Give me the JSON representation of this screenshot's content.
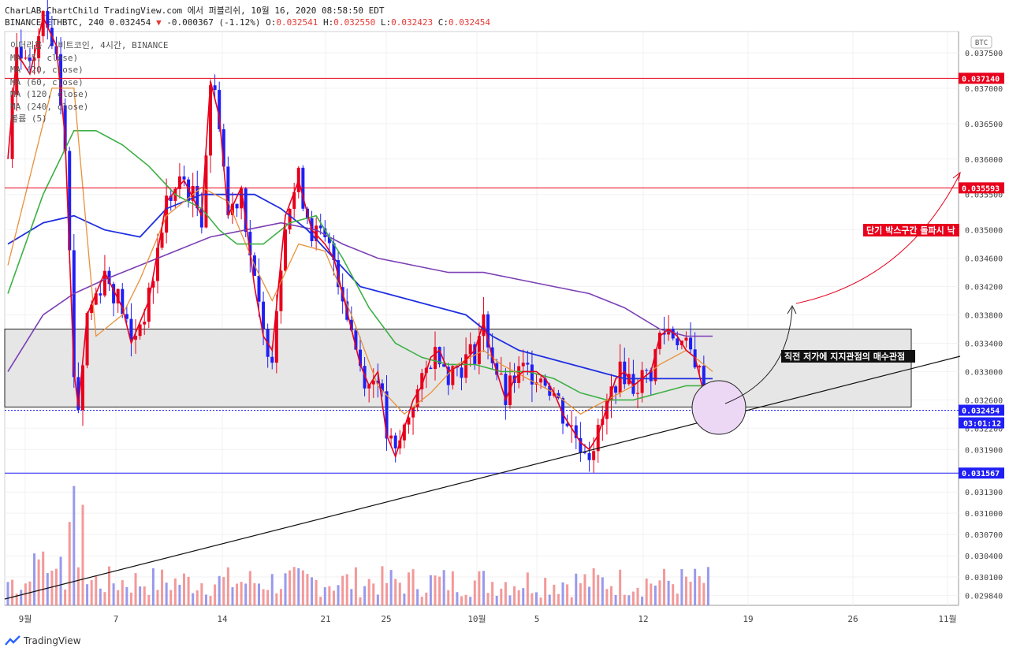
{
  "header": {
    "line1": "CharLAB_ChartChild TradingView.com 에서 퍼블리쉬, 10월 16, 2020 08:58:50 EDT",
    "symbol": "BINANCE:ETHBTC, 240 0.032454",
    "change": "-0.000367 (-1.12%)",
    "o_label": "O:",
    "o_val": "0.032541",
    "h_label": "H:",
    "h_val": "0.032550",
    "l_label": "L:",
    "l_val": "0.032423",
    "c_label": "C:",
    "c_val": "0.032454"
  },
  "legend": {
    "title": "이더리움 / 비트코인, 4시간, BINANCE",
    "items": [
      "MA (5, close)",
      "MA (20, close)",
      "MA (60, close)",
      "MA (120, close)",
      "MA (240, close)",
      "볼륨 (5)"
    ]
  },
  "currency_badge": "BTC",
  "footer": {
    "brand": "TradingView"
  },
  "annotations": {
    "breakout": "단기 박스구간 돌파시 낙",
    "support": "직전 저가에 지지관점의 매수관점",
    "timer": "03:01:12"
  },
  "colors": {
    "up": "#e8001c",
    "down": "#1f1ff5",
    "ma5": "#e8001c",
    "ma20": "#e8913a",
    "ma60": "#3cb043",
    "ma120": "#1f2fe0",
    "ma240": "#7b3fb5",
    "box_fill": "#e6e6e6",
    "ellipse_fill": "#ecd8f5"
  },
  "chart_data": {
    "type": "candlestick",
    "y_axis": {
      "min": 0.0297,
      "max": 0.0378,
      "ticks": [
        "0.037500",
        "0.037000",
        "0.036500",
        "0.036000",
        "0.035500",
        "0.035000",
        "0.034600",
        "0.034200",
        "0.033800",
        "0.033400",
        "0.033000",
        "0.032600",
        "0.032200",
        "0.031900",
        "0.031300",
        "0.031000",
        "0.030700",
        "0.030400",
        "0.030100",
        "0.029840"
      ]
    },
    "x_axis": {
      "labels": [
        "9월",
        "7",
        "14",
        "21",
        "25",
        "10월",
        "5",
        "12",
        "19",
        "26",
        "11월"
      ]
    },
    "price_levels": [
      {
        "value": 0.03714,
        "label": "0.037140",
        "color": "#e8001c"
      },
      {
        "value": 0.035593,
        "label": "0.035593",
        "color": "#e8001c"
      },
      {
        "value": 0.032454,
        "label": "0.032454",
        "color": "#1f1ff5"
      },
      {
        "value": 0.031567,
        "label": "0.031567",
        "color": "#1f1ff5"
      }
    ],
    "box_range": [
      0.0325,
      0.0336
    ],
    "price_path": [
      [
        0,
        0.036
      ],
      [
        2,
        0.0375
      ],
      [
        5,
        0.0372
      ],
      [
        8,
        0.038
      ],
      [
        11,
        0.0376
      ],
      [
        13,
        0.0363
      ],
      [
        15,
        0.033
      ],
      [
        16,
        0.0325
      ],
      [
        18,
        0.0338
      ],
      [
        22,
        0.0344
      ],
      [
        26,
        0.0339
      ],
      [
        28,
        0.0334
      ],
      [
        32,
        0.034
      ],
      [
        36,
        0.0354
      ],
      [
        40,
        0.0357
      ],
      [
        44,
        0.0352
      ],
      [
        46,
        0.0371
      ],
      [
        48,
        0.0366
      ],
      [
        50,
        0.0352
      ],
      [
        53,
        0.0356
      ],
      [
        56,
        0.0342
      ],
      [
        58,
        0.0335
      ],
      [
        60,
        0.0333
      ],
      [
        63,
        0.0352
      ],
      [
        66,
        0.0357
      ],
      [
        69,
        0.035
      ],
      [
        72,
        0.0348
      ],
      [
        74,
        0.0346
      ],
      [
        76,
        0.0341
      ],
      [
        78,
        0.0336
      ],
      [
        80,
        0.0331
      ],
      [
        82,
        0.0328
      ],
      [
        84,
        0.033
      ],
      [
        86,
        0.0321
      ],
      [
        88,
        0.0318
      ],
      [
        90,
        0.0322
      ],
      [
        92,
        0.0326
      ],
      [
        94,
        0.0328
      ],
      [
        96,
        0.0332
      ],
      [
        98,
        0.0333
      ],
      [
        100,
        0.033
      ],
      [
        103,
        0.0331
      ],
      [
        106,
        0.0333
      ],
      [
        108,
        0.0337
      ],
      [
        110,
        0.0332
      ],
      [
        113,
        0.0326
      ],
      [
        115,
        0.0329
      ],
      [
        117,
        0.033
      ],
      [
        120,
        0.033
      ],
      [
        122,
        0.0329
      ],
      [
        124,
        0.0327
      ],
      [
        126,
        0.0324
      ],
      [
        128,
        0.0322
      ],
      [
        130,
        0.032
      ],
      [
        132,
        0.0319
      ],
      [
        134,
        0.0321
      ],
      [
        136,
        0.0325
      ],
      [
        138,
        0.0329
      ],
      [
        140,
        0.033
      ],
      [
        142,
        0.0328
      ],
      [
        144,
        0.0329
      ],
      [
        146,
        0.033
      ],
      [
        148,
        0.0335
      ],
      [
        150,
        0.0336
      ],
      [
        152,
        0.0335
      ],
      [
        154,
        0.0333
      ],
      [
        156,
        0.0332
      ],
      [
        158,
        0.0327
      ],
      [
        159,
        0.03245
      ]
    ],
    "volume_axis_max": 0.004,
    "ma_lines": {
      "ma20": [
        [
          0,
          0.0345
        ],
        [
          10,
          0.037
        ],
        [
          15,
          0.037
        ],
        [
          20,
          0.0335
        ],
        [
          26,
          0.0338
        ],
        [
          30,
          0.0343
        ],
        [
          36,
          0.0352
        ],
        [
          44,
          0.0356
        ],
        [
          50,
          0.0354
        ],
        [
          56,
          0.0345
        ],
        [
          60,
          0.034
        ],
        [
          66,
          0.0348
        ],
        [
          72,
          0.0347
        ],
        [
          78,
          0.0338
        ],
        [
          84,
          0.0328
        ],
        [
          90,
          0.0324
        ],
        [
          96,
          0.0327
        ],
        [
          102,
          0.0331
        ],
        [
          108,
          0.0333
        ],
        [
          112,
          0.0331
        ],
        [
          118,
          0.0329
        ],
        [
          124,
          0.0327
        ],
        [
          130,
          0.0324
        ],
        [
          136,
          0.0326
        ],
        [
          142,
          0.0328
        ],
        [
          148,
          0.0331
        ],
        [
          154,
          0.0333
        ],
        [
          160,
          0.033
        ]
      ],
      "ma60": [
        [
          0,
          0.0341
        ],
        [
          8,
          0.0355
        ],
        [
          15,
          0.0364
        ],
        [
          20,
          0.0364
        ],
        [
          26,
          0.0362
        ],
        [
          32,
          0.0359
        ],
        [
          38,
          0.0355
        ],
        [
          44,
          0.0353
        ],
        [
          48,
          0.035
        ],
        [
          52,
          0.0348
        ],
        [
          58,
          0.0348
        ],
        [
          64,
          0.0351
        ],
        [
          70,
          0.0352
        ],
        [
          76,
          0.0346
        ],
        [
          82,
          0.0339
        ],
        [
          88,
          0.0334
        ],
        [
          94,
          0.0332
        ],
        [
          100,
          0.0331
        ],
        [
          106,
          0.0331
        ],
        [
          112,
          0.033
        ],
        [
          118,
          0.033
        ],
        [
          124,
          0.0329
        ],
        [
          130,
          0.0327
        ],
        [
          136,
          0.0326
        ],
        [
          142,
          0.0326
        ],
        [
          148,
          0.0327
        ],
        [
          154,
          0.0328
        ],
        [
          160,
          0.0328
        ]
      ],
      "ma120": [
        [
          0,
          0.0348
        ],
        [
          8,
          0.0351
        ],
        [
          15,
          0.0352
        ],
        [
          22,
          0.035
        ],
        [
          30,
          0.0349
        ],
        [
          36,
          0.0353
        ],
        [
          44,
          0.0355
        ],
        [
          50,
          0.0355
        ],
        [
          56,
          0.0355
        ],
        [
          62,
          0.0353
        ],
        [
          68,
          0.035
        ],
        [
          74,
          0.0346
        ],
        [
          80,
          0.0342
        ],
        [
          86,
          0.0341
        ],
        [
          92,
          0.034
        ],
        [
          98,
          0.0339
        ],
        [
          104,
          0.0338
        ],
        [
          110,
          0.0335
        ],
        [
          116,
          0.0333
        ],
        [
          122,
          0.0332
        ],
        [
          128,
          0.0331
        ],
        [
          134,
          0.033
        ],
        [
          140,
          0.0329
        ],
        [
          146,
          0.0329
        ],
        [
          152,
          0.0329
        ],
        [
          158,
          0.0329
        ],
        [
          160,
          0.0329
        ]
      ],
      "ma240": [
        [
          0,
          0.033
        ],
        [
          8,
          0.0338
        ],
        [
          15,
          0.0341
        ],
        [
          22,
          0.0343
        ],
        [
          30,
          0.0345
        ],
        [
          38,
          0.0347
        ],
        [
          46,
          0.0349
        ],
        [
          54,
          0.035
        ],
        [
          62,
          0.0351
        ],
        [
          70,
          0.035
        ],
        [
          76,
          0.0348
        ],
        [
          84,
          0.0346
        ],
        [
          92,
          0.0345
        ],
        [
          100,
          0.0344
        ],
        [
          108,
          0.0344
        ],
        [
          116,
          0.0343
        ],
        [
          124,
          0.0342
        ],
        [
          132,
          0.0341
        ],
        [
          140,
          0.0339
        ],
        [
          148,
          0.0336
        ],
        [
          154,
          0.0335
        ],
        [
          160,
          0.0335
        ]
      ]
    }
  }
}
